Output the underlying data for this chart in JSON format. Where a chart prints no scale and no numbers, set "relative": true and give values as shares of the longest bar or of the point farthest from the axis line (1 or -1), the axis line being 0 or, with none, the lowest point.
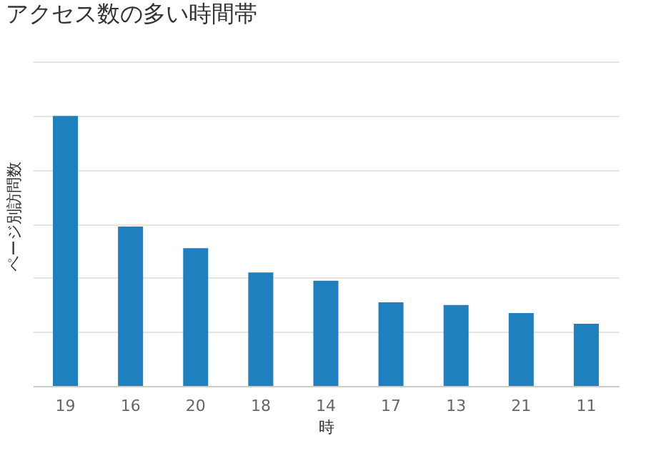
{
  "chart_data": {
    "type": "bar",
    "title": "アクセス数の多い時間帯",
    "xlabel": "時",
    "ylabel": "ページ別訪問数",
    "categories": [
      "19",
      "16",
      "20",
      "18",
      "14",
      "17",
      "13",
      "21",
      "11"
    ],
    "values": [
      1,
      0.59,
      0.51,
      0.42,
      0.39,
      0.31,
      0.3,
      0.27,
      0.23
    ],
    "color": "#1f80c0",
    "relative": true,
    "grid": "y"
  }
}
